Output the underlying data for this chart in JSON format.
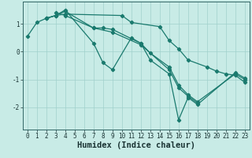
{
  "xlabel": "Humidex (Indice chaleur)",
  "xlim": [
    -0.5,
    23.5
  ],
  "ylim": [
    -2.8,
    1.8
  ],
  "background_color": "#c8ebe6",
  "grid_color": "#a0d0cc",
  "line_color": "#1a7a6e",
  "lines": [
    {
      "x": [
        0,
        1,
        2,
        3,
        4,
        10,
        11,
        14,
        15,
        16,
        17,
        19,
        20,
        21,
        22,
        23
      ],
      "y": [
        0.55,
        1.05,
        1.2,
        1.3,
        1.35,
        1.3,
        1.05,
        0.9,
        0.4,
        0.1,
        -0.3,
        -0.55,
        -0.7,
        -0.8,
        -0.85,
        -1.1
      ]
    },
    {
      "x": [
        2,
        3,
        4,
        7,
        8,
        9,
        12,
        13,
        15,
        16,
        17,
        18,
        22,
        23
      ],
      "y": [
        1.2,
        1.3,
        1.45,
        0.85,
        0.85,
        0.8,
        0.3,
        -0.05,
        -0.55,
        -1.2,
        -1.55,
        -1.8,
        -0.8,
        -1.0
      ]
    },
    {
      "x": [
        2,
        3,
        4,
        7,
        8,
        9,
        11,
        12,
        13,
        15,
        16,
        17,
        18,
        22,
        23
      ],
      "y": [
        1.2,
        1.3,
        1.5,
        0.3,
        -0.4,
        -0.65,
        0.5,
        0.3,
        -0.3,
        -0.8,
        -2.45,
        -1.65,
        -1.9,
        -0.75,
        -0.95
      ]
    },
    {
      "x": [
        3,
        4,
        7,
        9,
        12,
        15,
        16,
        17,
        18
      ],
      "y": [
        1.4,
        1.3,
        0.85,
        0.7,
        0.25,
        -0.65,
        -1.3,
        -1.6,
        -1.85
      ]
    }
  ],
  "yticks": [
    -2,
    -1,
    0,
    1
  ],
  "xticks": [
    0,
    1,
    2,
    3,
    4,
    5,
    6,
    7,
    8,
    9,
    10,
    11,
    12,
    13,
    14,
    15,
    16,
    17,
    18,
    19,
    20,
    21,
    22,
    23
  ],
  "tick_fontsize": 5.5,
  "label_fontsize": 7.5
}
